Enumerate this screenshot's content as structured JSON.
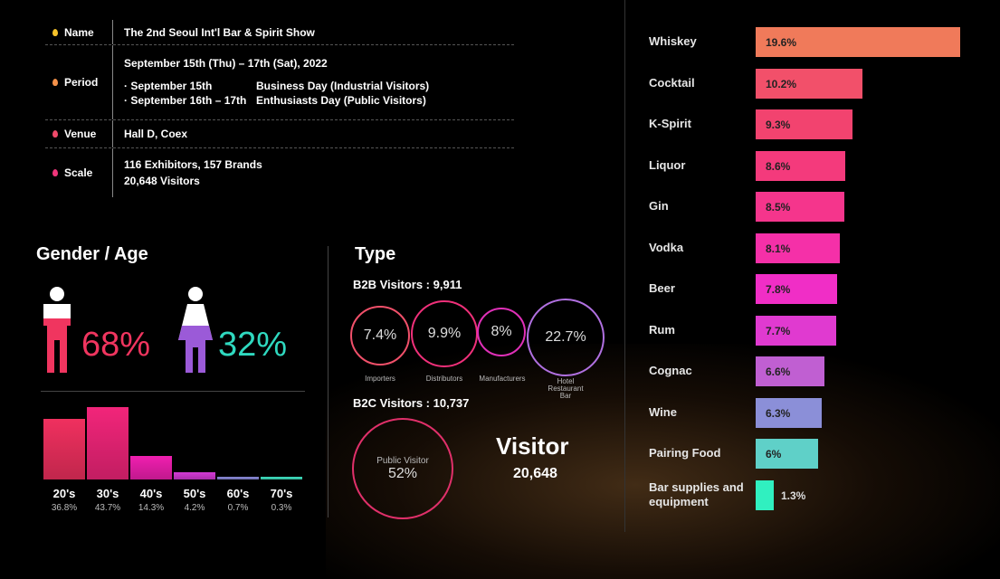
{
  "info": {
    "name_key": "Name",
    "name_val": "The 2nd Seoul Int'l Bar & Spirit Show",
    "period_key": "Period",
    "period_main": "September 15th (Thu) – 17th (Sat), 2022",
    "period_b2b_date": "· September 15th",
    "period_b2b_desc": "Business Day (Industrial Visitors)",
    "period_b2c_date": "· September 16th – 17th",
    "period_b2c_desc": "Enthusiasts Day (Public Visitors)",
    "venue_key": "Venue",
    "venue_val": "Hall D, Coex",
    "scale_key": "Scale",
    "scale_val1": "116 Exhibitors, 157 Brands",
    "scale_val2": "20,648 Visitors"
  },
  "gender": {
    "title": "Gender / Age",
    "male_pct": "68%",
    "female_pct": "32%",
    "male_color": "#f0355f",
    "female_color": "#2fd9c0"
  },
  "ages": [
    {
      "label": "20's",
      "value": "36.8%",
      "v": 36.8,
      "color": "#f0305f"
    },
    {
      "label": "30's",
      "value": "43.7%",
      "v": 43.7,
      "color": "#f2257a"
    },
    {
      "label": "40's",
      "value": "14.3%",
      "v": 14.3,
      "color": "#f01fb0"
    },
    {
      "label": "50's",
      "value": "4.2%",
      "v": 4.2,
      "color": "#d43ad6"
    },
    {
      "label": "60's",
      "value": "0.7%",
      "v": 0.7,
      "color": "#8a8ad8"
    },
    {
      "label": "70's",
      "value": "0.3%",
      "v": 0.3,
      "color": "#3fe0c0"
    }
  ],
  "type": {
    "title": "Type",
    "b2b": "B2B Visitors : 9,911",
    "b2c": "B2C Visitors : 10,737",
    "circles": [
      {
        "value": "7.4%",
        "label": "Importers"
      },
      {
        "value": "9.9%",
        "label": "Distributors"
      },
      {
        "value": "8%",
        "label": "Manufacturers"
      },
      {
        "value": "22.7%",
        "label": "Hotel\nRestaurant\nBar"
      }
    ],
    "public_label": "Public Visitor",
    "public_value": "52%"
  },
  "visitor": {
    "title": "Visitor",
    "count": "20,648"
  },
  "chart_data": {
    "type": "bar",
    "categories": [
      "Whiskey",
      "Cocktail",
      "K-Spirit",
      "Liquor",
      "Gin",
      "Vodka",
      "Beer",
      "Rum",
      "Cognac",
      "Wine",
      "Pairing Food",
      "Bar supplies and equipment"
    ],
    "values": [
      19.6,
      10.2,
      9.3,
      8.6,
      8.5,
      8.1,
      7.8,
      7.7,
      6.6,
      6.3,
      6,
      1.3
    ],
    "labels": [
      "19.6%",
      "10.2%",
      "9.3%",
      "8.6%",
      "8.5%",
      "8.1%",
      "7.8%",
      "7.7%",
      "6.6%",
      "6.3%",
      "6%",
      "1.3%"
    ],
    "colors": [
      "#f07a5a",
      "#f2506a",
      "#f2436f",
      "#f43a7c",
      "#f5358c",
      "#f530a8",
      "#f02ec6",
      "#e03ad0",
      "#c05fd2",
      "#8b8fd8",
      "#5fd0c8",
      "#30f0c0"
    ]
  }
}
